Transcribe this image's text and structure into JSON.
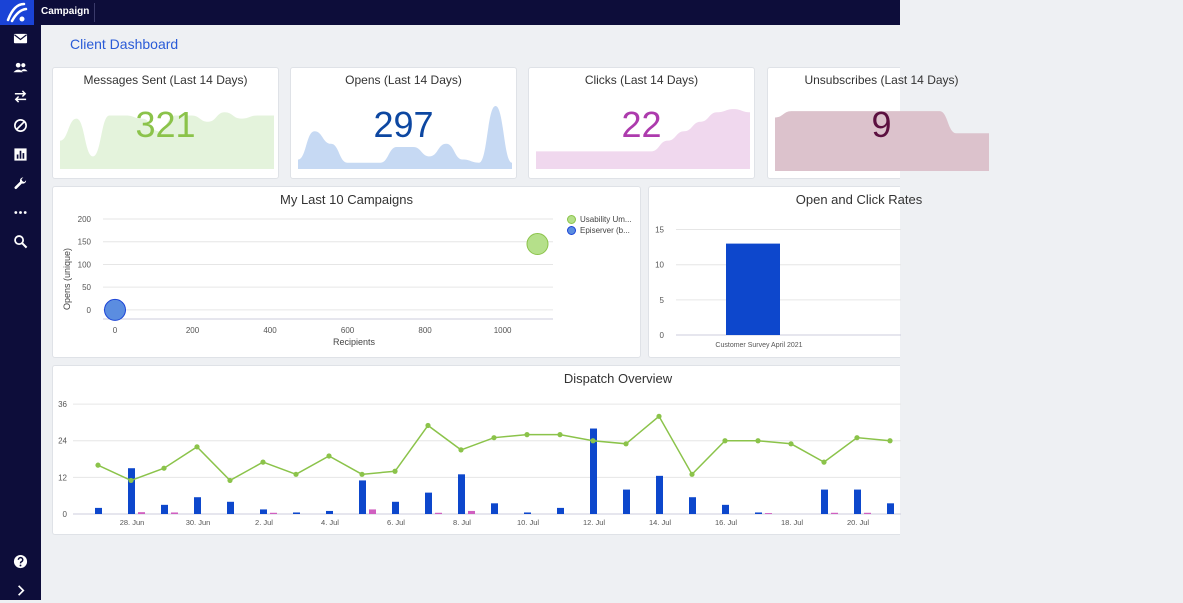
{
  "app": {
    "title": "Campaign"
  },
  "page": {
    "title": "Client Dashboard"
  },
  "sidebar": {
    "items": [
      {
        "icon": "mail-icon"
      },
      {
        "icon": "people-icon"
      },
      {
        "icon": "swap-icon"
      },
      {
        "icon": "block-icon"
      },
      {
        "icon": "bar-chart-icon"
      },
      {
        "icon": "wrench-icon"
      },
      {
        "icon": "more-icon"
      },
      {
        "icon": "search-icon"
      }
    ],
    "bottom": [
      {
        "icon": "help-icon"
      },
      {
        "icon": "chevron-right-icon"
      }
    ]
  },
  "kpis": [
    {
      "label": "Messages Sent (Last 14 Days)",
      "value": "321",
      "color": "#8bc34a",
      "fill": "#e4f3dc",
      "spark": [
        0.45,
        0.8,
        0.2,
        0.85,
        0.85,
        0.8,
        0.6,
        0.85,
        0.85,
        0.75,
        0.9,
        0.8,
        0.85,
        0.85
      ]
    },
    {
      "label": "Opens (Last 14 Days)",
      "value": "297",
      "color": "#0d47a1",
      "fill": "#c6d9f3",
      "spark": [
        0.15,
        0.6,
        0.4,
        0.1,
        0.1,
        0.1,
        0.35,
        0.35,
        0.2,
        0.4,
        0.15,
        0.1,
        1.0,
        0.1
      ]
    },
    {
      "label": "Clicks (Last 14 Days)",
      "value": "22",
      "color": "#ad3bad",
      "fill": "#f0d8ee",
      "spark": [
        0.28,
        0.28,
        0.28,
        0.28,
        0.28,
        0.28,
        0.28,
        0.28,
        0.45,
        0.6,
        0.75,
        0.9,
        0.95,
        0.9
      ]
    },
    {
      "label": "Unsubscribes (Last 14 Days)",
      "value": "9",
      "color": "#5c1040",
      "fill": "#dcc2cc",
      "spark": [
        0.85,
        0.95,
        0.95,
        0.95,
        0.95,
        0.95,
        0.95,
        0.95,
        0.95,
        0.95,
        0.95,
        0.6,
        0.6,
        0.6
      ]
    }
  ],
  "campaigns_chart": {
    "title": "My Last 10 Campaigns",
    "chart_data": {
      "type": "scatter",
      "xlabel": "Recipients",
      "ylabel": "Opens (unique)",
      "xlim": [
        0,
        1130
      ],
      "ylim": [
        -20,
        200
      ],
      "xticks": [
        0,
        200,
        400,
        600,
        800,
        1000
      ],
      "yticks": [
        0,
        50,
        100,
        150,
        200
      ],
      "series": [
        {
          "name": "Usability Um...",
          "color": "#b5e08a",
          "stroke": "#8bc34a",
          "points": [
            {
              "x": 1090,
              "y": 145
            }
          ]
        },
        {
          "name": "Episerver (b...",
          "color": "#5b8de0",
          "stroke": "#1a43d6",
          "points": [
            {
              "x": 0,
              "y": 0
            }
          ]
        }
      ]
    }
  },
  "open_chart": {
    "title": "Open and Click Rates",
    "chart_data": {
      "type": "bar",
      "categories": [
        "Customer Survey April 2021"
      ],
      "values": [
        13
      ],
      "ylim": [
        0,
        16.5
      ],
      "yticks": [
        0,
        5,
        10,
        15
      ],
      "color": "#0d47cc"
    }
  },
  "dispatch_chart": {
    "title": "Dispatch Overview",
    "chart_data": {
      "type": "bar",
      "ylim": [
        0,
        38
      ],
      "yticks": [
        0,
        12,
        24,
        36
      ],
      "x_count": 25,
      "x_labels": [
        {
          "i": 1,
          "label": "28. Jun"
        },
        {
          "i": 3,
          "label": "30. Jun"
        },
        {
          "i": 5,
          "label": "2. Jul"
        },
        {
          "i": 7,
          "label": "4. Jul"
        },
        {
          "i": 9,
          "label": "6. Jul"
        },
        {
          "i": 11,
          "label": "8. Jul"
        },
        {
          "i": 13,
          "label": "10. Jul"
        },
        {
          "i": 15,
          "label": "12. Jul"
        },
        {
          "i": 17,
          "label": "14. Jul"
        },
        {
          "i": 19,
          "label": "16. Jul"
        },
        {
          "i": 21,
          "label": "18. Jul"
        },
        {
          "i": 23,
          "label": "20. Jul"
        }
      ],
      "series": [
        {
          "type": "bar",
          "color": "#0d47cc",
          "values": [
            2,
            15,
            3,
            5.5,
            4,
            1.5,
            0.5,
            1,
            11,
            4,
            7,
            13,
            3.5,
            0.5,
            2,
            28,
            8,
            12.5,
            5.5,
            3,
            0.5,
            0,
            8,
            8,
            3.5
          ]
        },
        {
          "type": "bar",
          "color": "#d05fc0",
          "values": [
            0,
            0.6,
            0.5,
            0,
            0,
            0.4,
            0,
            0,
            1.5,
            0,
            0.4,
            1,
            0,
            0,
            0,
            0,
            0,
            0,
            0,
            0,
            0.3,
            0,
            0.4,
            0.4,
            0
          ]
        },
        {
          "type": "line",
          "color": "#8bc34a",
          "values": [
            16,
            11,
            15,
            22,
            11,
            17,
            13,
            19,
            13,
            14,
            29,
            21,
            25,
            26,
            26,
            24,
            23,
            32,
            13,
            24,
            24,
            23,
            17,
            25,
            24
          ]
        }
      ]
    }
  }
}
